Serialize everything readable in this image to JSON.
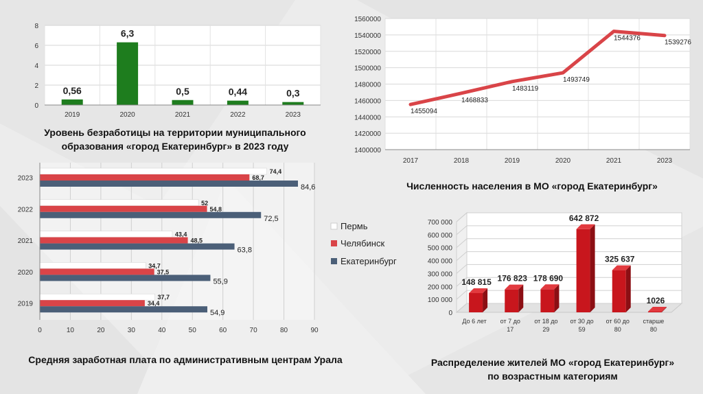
{
  "colors": {
    "unemployment_bar": "#1e7d1e",
    "population_line": "#d94448",
    "perm": "#ffffff",
    "chelyabinsk": "#d94448",
    "ekaterinburg": "#4b5f78",
    "age_bar": "#c8161d"
  },
  "captions": {
    "unemployment": "Уровень безработицы на территории муниципального образования «город Екатеринбург» в 2023 году",
    "population": "Численность населения в МО «город Екатеринбург»",
    "salary": "Средняя заработная плата по административным центрам Урала",
    "age_line1": "Распределение жителей  МО «город Екатеринбург»",
    "age_line2": "по возрастным категориям"
  },
  "chart_data": [
    {
      "id": "unemployment",
      "type": "bar",
      "categories": [
        "2019",
        "2020",
        "2021",
        "2022",
        "2023"
      ],
      "values": [
        0.56,
        6.3,
        0.5,
        0.44,
        0.3
      ],
      "value_labels": [
        "0,56",
        "6,3",
        "0,5",
        "0,44",
        "0,3"
      ],
      "ylim": [
        0,
        8
      ],
      "yticks": [
        "0",
        "2",
        "4",
        "6",
        "8"
      ],
      "grid": true
    },
    {
      "id": "population",
      "type": "line",
      "categories": [
        "2017",
        "2018",
        "2019",
        "2020",
        "2021",
        "2023"
      ],
      "values": [
        1455094,
        1468833,
        1483119,
        1493749,
        1544376,
        1539276
      ],
      "value_labels": [
        "1455094",
        "1468833",
        "1483119",
        "1493749",
        "1544376",
        "1539276"
      ],
      "ylim": [
        1400000,
        1560000
      ],
      "yticks": [
        "1400000",
        "1420000",
        "1440000",
        "1460000",
        "1480000",
        "1500000",
        "1520000",
        "1540000",
        "1560000"
      ],
      "grid": true
    },
    {
      "id": "salary",
      "type": "bar",
      "orientation": "horizontal",
      "categories": [
        "2023",
        "2022",
        "2021",
        "2020",
        "2019"
      ],
      "series": [
        {
          "name": "Пермь",
          "values": [
            74.4,
            52,
            43.4,
            34.7,
            37.7
          ],
          "labels": [
            "74,4",
            "52",
            "43,4",
            "34,7",
            "37,7"
          ]
        },
        {
          "name": "Челябинск",
          "values": [
            68.7,
            54.8,
            48.5,
            37.5,
            34.4
          ],
          "labels": [
            "68,7",
            "54,8",
            "48,5",
            "37,5",
            "34,4"
          ]
        },
        {
          "name": "Екатеринбург",
          "values": [
            84.6,
            72.5,
            63.8,
            55.9,
            54.9
          ],
          "labels": [
            "84,6",
            "72,5",
            "63,8",
            "55,9",
            "54,9"
          ]
        }
      ],
      "xlim": [
        0,
        90
      ],
      "xticks": [
        "0",
        "10",
        "20",
        "30",
        "40",
        "50",
        "60",
        "70",
        "80",
        "90"
      ],
      "grid": true,
      "legend": "right"
    },
    {
      "id": "age",
      "type": "bar",
      "style": "3d",
      "categories": [
        [
          "До 6 лет"
        ],
        [
          "от 7 до",
          "17"
        ],
        [
          "от 18 до",
          "29"
        ],
        [
          "от 30 до",
          "59"
        ],
        [
          "от 60 до",
          "80"
        ],
        [
          "старше",
          "80"
        ]
      ],
      "values": [
        148815,
        176823,
        178690,
        642872,
        325637,
        1026
      ],
      "value_labels": [
        "148 815",
        "176 823",
        "178 690",
        "642 872",
        "325 637",
        "1026"
      ],
      "ylim": [
        0,
        700000
      ],
      "yticks": [
        "0",
        "100 000",
        "200 000",
        "300 000",
        "400 000",
        "500 000",
        "600 000",
        "700 000"
      ],
      "grid": true
    }
  ]
}
